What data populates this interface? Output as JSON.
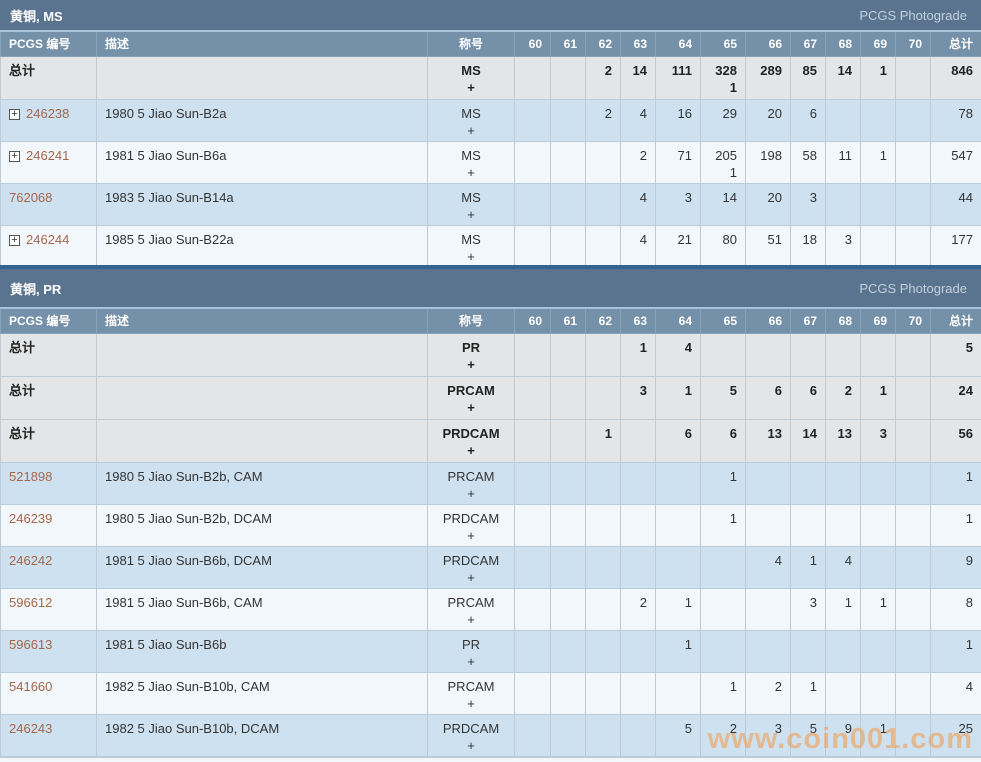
{
  "page": {
    "watermark": "www.coin001.com"
  },
  "icons": {
    "expand": "plus-box-icon"
  },
  "columns": [
    "PCGS 编号",
    "描述",
    "称号",
    "60",
    "61",
    "62",
    "63",
    "64",
    "65",
    "66",
    "67",
    "68",
    "69",
    "70",
    "总计"
  ],
  "sections": [
    {
      "title": "黄铜, MS",
      "photograde": "PCGS Photograde",
      "rows": [
        {
          "is_total": true,
          "expand": false,
          "number": "总计",
          "desc": "",
          "designation": "MS\n+",
          "grades": [
            "",
            "",
            "2",
            "14",
            "111",
            "328\n1",
            "289",
            "85",
            "14",
            "1",
            ""
          ],
          "total": "846"
        },
        {
          "is_total": false,
          "expand": true,
          "number": "246238",
          "desc": "1980 5 Jiao Sun-B2a",
          "designation": "MS\n+",
          "grades": [
            "",
            "",
            "2",
            "4",
            "16",
            "29",
            "20",
            "6",
            "",
            "",
            ""
          ],
          "total": "78"
        },
        {
          "is_total": false,
          "expand": true,
          "number": "246241",
          "desc": "1981 5 Jiao Sun-B6a",
          "designation": "MS\n+",
          "grades": [
            "",
            "",
            "",
            "2",
            "71",
            "205\n1",
            "198",
            "58",
            "11",
            "1",
            ""
          ],
          "total": "547"
        },
        {
          "is_total": false,
          "expand": false,
          "number": "762068",
          "desc": "1983 5 Jiao Sun-B14a",
          "designation": "MS\n+",
          "grades": [
            "",
            "",
            "",
            "4",
            "3",
            "14",
            "20",
            "3",
            "",
            "",
            ""
          ],
          "total": "44"
        },
        {
          "is_total": false,
          "expand": true,
          "number": "246244",
          "desc": "1985 5 Jiao Sun-B22a",
          "designation": "MS\n+",
          "grades": [
            "",
            "",
            "",
            "4",
            "21",
            "80",
            "51",
            "18",
            "3",
            "",
            ""
          ],
          "total": "177"
        }
      ]
    },
    {
      "title": "黄铜, PR",
      "photograde": "PCGS Photograde",
      "rows": [
        {
          "is_total": true,
          "expand": false,
          "number": "总计",
          "desc": "",
          "designation": "PR\n+",
          "grades": [
            "",
            "",
            "",
            "1",
            "4",
            "",
            "",
            "",
            "",
            "",
            ""
          ],
          "total": "5"
        },
        {
          "is_total": true,
          "expand": false,
          "number": "总计",
          "desc": "",
          "designation": "PRCAM\n+",
          "grades": [
            "",
            "",
            "",
            "3",
            "1",
            "5",
            "6",
            "6",
            "2",
            "1",
            ""
          ],
          "total": "24"
        },
        {
          "is_total": true,
          "expand": false,
          "number": "总计",
          "desc": "",
          "designation": "PRDCAM\n+",
          "grades": [
            "",
            "",
            "1",
            "",
            "6",
            "6",
            "13",
            "14",
            "13",
            "3",
            ""
          ],
          "total": "56"
        },
        {
          "is_total": false,
          "expand": false,
          "number": "521898",
          "desc": "1980 5 Jiao Sun-B2b, CAM",
          "designation": "PRCAM\n+",
          "grades": [
            "",
            "",
            "",
            "",
            "",
            "1",
            "",
            "",
            "",
            "",
            ""
          ],
          "total": "1"
        },
        {
          "is_total": false,
          "expand": false,
          "number": "246239",
          "desc": "1980 5 Jiao Sun-B2b, DCAM",
          "designation": "PRDCAM\n+",
          "grades": [
            "",
            "",
            "",
            "",
            "",
            "1",
            "",
            "",
            "",
            "",
            ""
          ],
          "total": "1"
        },
        {
          "is_total": false,
          "expand": false,
          "number": "246242",
          "desc": "1981 5 Jiao Sun-B6b, DCAM",
          "designation": "PRDCAM\n+",
          "grades": [
            "",
            "",
            "",
            "",
            "",
            "",
            "4",
            "1",
            "4",
            "",
            ""
          ],
          "total": "9"
        },
        {
          "is_total": false,
          "expand": false,
          "number": "596612",
          "desc": "1981 5 Jiao Sun-B6b, CAM",
          "designation": "PRCAM\n+",
          "grades": [
            "",
            "",
            "",
            "2",
            "1",
            "",
            "",
            "3",
            "1",
            "1",
            ""
          ],
          "total": "8"
        },
        {
          "is_total": false,
          "expand": false,
          "number": "596613",
          "desc": "1981 5 Jiao Sun-B6b",
          "designation": "PR\n+",
          "grades": [
            "",
            "",
            "",
            "",
            "1",
            "",
            "",
            "",
            "",
            "",
            ""
          ],
          "total": "1"
        },
        {
          "is_total": false,
          "expand": false,
          "number": "541660",
          "desc": "1982 5 Jiao Sun-B10b, CAM",
          "designation": "PRCAM\n+",
          "grades": [
            "",
            "",
            "",
            "",
            "",
            "1",
            "2",
            "1",
            "",
            "",
            ""
          ],
          "total": "4"
        },
        {
          "is_total": false,
          "expand": false,
          "number": "246243",
          "desc": "1982 5 Jiao Sun-B10b, DCAM",
          "designation": "PRDCAM\n+",
          "grades": [
            "",
            "",
            "",
            "",
            "5",
            "2",
            "3",
            "5",
            "9",
            "1",
            ""
          ],
          "total": "25"
        }
      ]
    }
  ]
}
